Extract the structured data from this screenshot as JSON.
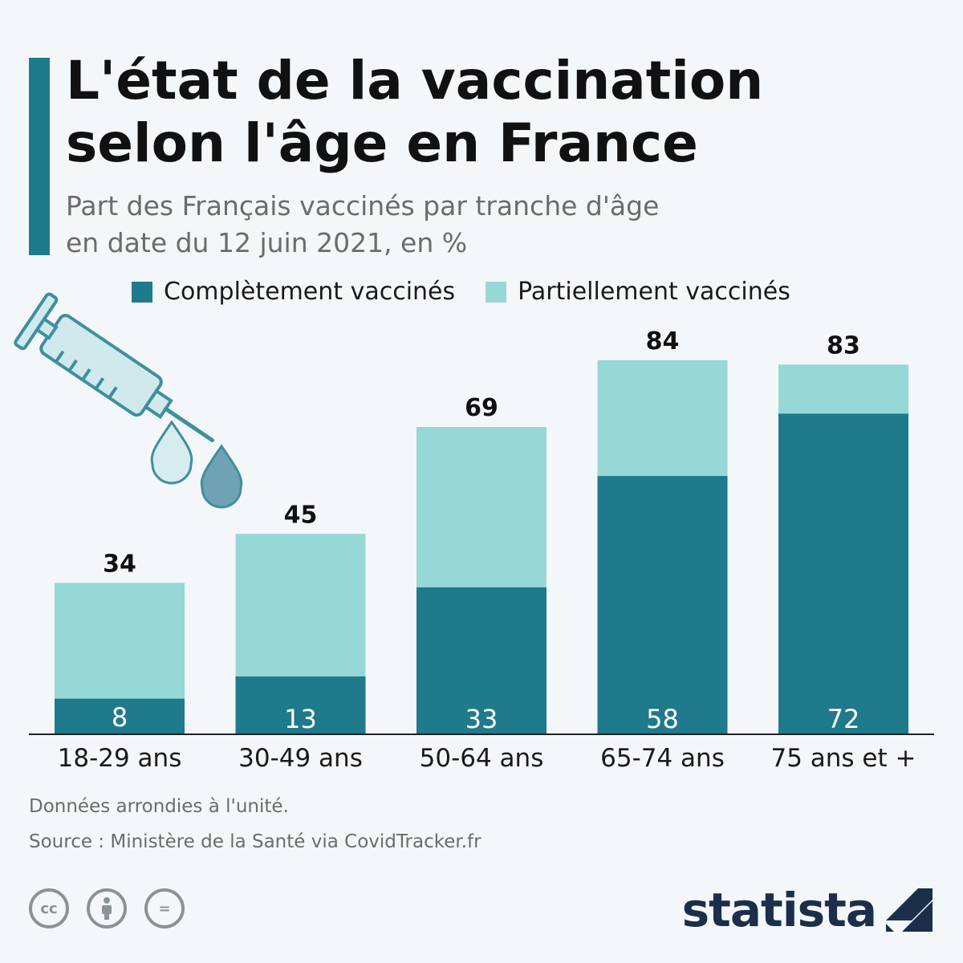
{
  "header": {
    "title": "L'état de la vaccination selon l'âge en France",
    "subtitle_line1": "Part des Français vaccinés par tranche d'âge",
    "subtitle_line2": "en date du 12 juin 2021, en %"
  },
  "colors": {
    "complete": "#1f7a8c",
    "partial": "#96d8d6",
    "accent": "#1f7a8c"
  },
  "chart_data": {
    "type": "bar",
    "stacked": true,
    "categories": [
      "18-29 ans",
      "30-49 ans",
      "50-64 ans",
      "65-74 ans",
      "75 ans et +"
    ],
    "series": [
      {
        "name": "Complètement vaccinés",
        "values": [
          8,
          13,
          33,
          58,
          72
        ]
      },
      {
        "name": "Partiellement vaccinés",
        "values": [
          26,
          32,
          36,
          26,
          11
        ]
      }
    ],
    "totals": [
      34,
      45,
      69,
      84,
      83
    ],
    "legend_position": "top",
    "grid": false
  },
  "footer": {
    "note": "Données arrondies à l'unité.",
    "source": "Source : Ministère de la Santé via CovidTracker.fr",
    "license_icons": [
      "cc-icon",
      "by-icon",
      "nd-icon"
    ],
    "license_icon_labels": [
      "cc",
      "",
      "="
    ],
    "brand": "statista"
  },
  "illustration": {
    "icons": [
      "syringe-icon",
      "droplet-icon"
    ]
  }
}
